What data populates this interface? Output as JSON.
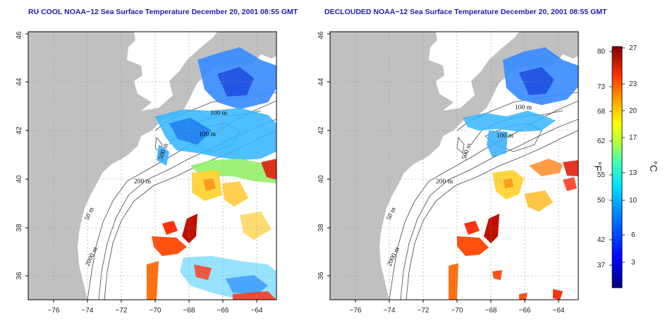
{
  "panels": [
    {
      "title": "RU COOL NOAA−12 Sea Surface Temperature December 20, 2001 08:55 GMT",
      "contours": [
        "100 m",
        "100 m",
        "200 m",
        "50 m",
        "2000 m",
        "500 m"
      ]
    },
    {
      "title": "DECLOUDED NOAA−12 Sea Surface Temperature December 20, 2001 08:55 GMT",
      "contours": [
        "100 m",
        "100 m",
        "200 m",
        "50 m",
        "2000 m",
        "500 m"
      ]
    }
  ],
  "axes": {
    "lon_ticks": [
      "−76",
      "−74",
      "−72",
      "−70",
      "−68",
      "−66",
      "−64"
    ],
    "lat_ticks": [
      "36",
      "38",
      "40",
      "42",
      "44",
      "46"
    ]
  },
  "colorbar": {
    "fahrenheit_ticks": [
      "80",
      "73",
      "68",
      "62",
      "55",
      "50",
      "42",
      "37"
    ],
    "celsius_ticks": [
      "27",
      "23",
      "20",
      "17",
      "13",
      "10",
      "6",
      "3"
    ],
    "fahrenheit_unit": "°F",
    "celsius_unit": "°C"
  },
  "colors": {
    "title": "#1d1da8",
    "land": "#c0c0c0",
    "ocean": "#ffffff"
  }
}
